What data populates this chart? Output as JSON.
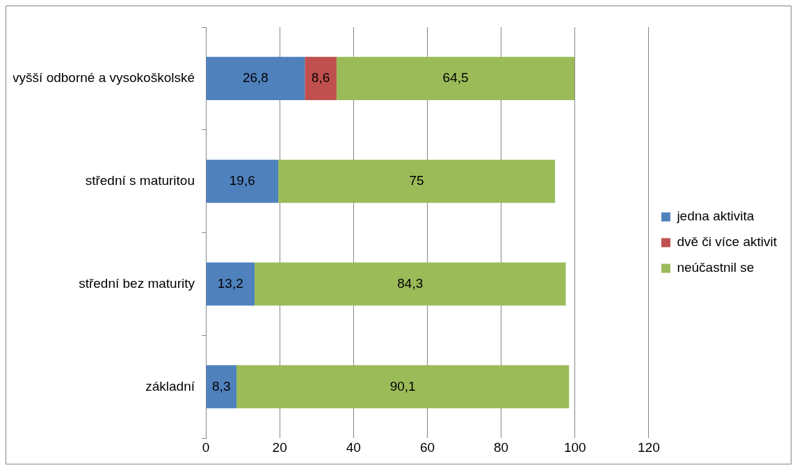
{
  "chart_data": {
    "type": "bar",
    "orientation": "horizontal",
    "stacked": true,
    "categories": [
      "vyšší odborné a vysokoškolské",
      "střední s maturitou",
      "střední bez maturity",
      "základní"
    ],
    "series": [
      {
        "name": "jedna aktivita",
        "color": "#4f81bd",
        "values": [
          26.8,
          19.6,
          13.2,
          8.3
        ],
        "value_labels": [
          "26,8",
          "19,6",
          "13,2",
          "8,3"
        ]
      },
      {
        "name": "dvě či více aktivit",
        "color": "#c0504d",
        "values": [
          8.6,
          null,
          null,
          null
        ],
        "value_labels": [
          "8,6",
          null,
          null,
          null
        ]
      },
      {
        "name": "neúčastnil se",
        "color": "#9bbb59",
        "values": [
          64.5,
          75,
          84.3,
          90.1
        ],
        "value_labels": [
          "64,5",
          "75",
          "84,3",
          "90,1"
        ]
      }
    ],
    "xlim": [
      0,
      120
    ],
    "xticks": [
      0,
      20,
      40,
      60,
      80,
      100,
      120
    ],
    "grid": "x",
    "legend": "right"
  }
}
